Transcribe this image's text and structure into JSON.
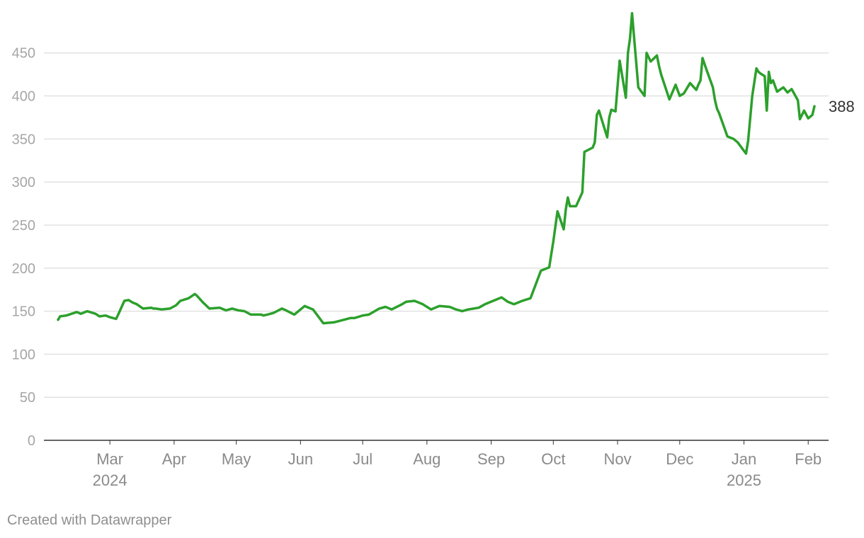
{
  "chart_data": {
    "type": "line",
    "title": "",
    "xlabel": "",
    "ylabel": "",
    "ylim": [
      0,
      495
    ],
    "yticks": [
      0,
      50,
      100,
      150,
      200,
      250,
      300,
      350,
      400,
      450
    ],
    "grid": true,
    "legend": "none",
    "line_color": "#2ca02c",
    "grid_color": "#e2e2e2",
    "xticks": [
      {
        "month": "Mar",
        "year": "2024",
        "date": "2024-03-01"
      },
      {
        "month": "Apr",
        "year": "",
        "date": "2024-04-01"
      },
      {
        "month": "May",
        "year": "",
        "date": "2024-05-01"
      },
      {
        "month": "Jun",
        "year": "",
        "date": "2024-06-01"
      },
      {
        "month": "Jul",
        "year": "",
        "date": "2024-07-01"
      },
      {
        "month": "Aug",
        "year": "",
        "date": "2024-08-01"
      },
      {
        "month": "Sep",
        "year": "",
        "date": "2024-09-01"
      },
      {
        "month": "Oct",
        "year": "",
        "date": "2024-10-01"
      },
      {
        "month": "Nov",
        "year": "",
        "date": "2024-11-01"
      },
      {
        "month": "Dec",
        "year": "",
        "date": "2024-12-01"
      },
      {
        "month": "Jan",
        "year": "2025",
        "date": "2025-01-01"
      },
      {
        "month": "Feb",
        "year": "",
        "date": "2025-02-01"
      }
    ],
    "end_label": "388",
    "series": [
      {
        "x": [
          "2024-02-05",
          "2024-02-06",
          "2024-02-09",
          "2024-02-14",
          "2024-02-16",
          "2024-02-19",
          "2024-02-23",
          "2024-02-25",
          "2024-02-28",
          "2024-03-01",
          "2024-03-04",
          "2024-03-05",
          "2024-03-08",
          "2024-03-10",
          "2024-03-12",
          "2024-03-14",
          "2024-03-17",
          "2024-03-21",
          "2024-03-22",
          "2024-03-23",
          "2024-03-26",
          "2024-03-30",
          "2024-04-02",
          "2024-04-04",
          "2024-04-08",
          "2024-04-11",
          "2024-04-12",
          "2024-04-15",
          "2024-04-18",
          "2024-04-23",
          "2024-04-26",
          "2024-04-29",
          "2024-05-02",
          "2024-05-05",
          "2024-05-08",
          "2024-05-13",
          "2024-05-14",
          "2024-05-16",
          "2024-05-19",
          "2024-05-23",
          "2024-05-25",
          "2024-05-29",
          "2024-06-03",
          "2024-06-05",
          "2024-06-07",
          "2024-06-12",
          "2024-06-17",
          "2024-06-22",
          "2024-06-25",
          "2024-06-27",
          "2024-07-01",
          "2024-07-04",
          "2024-07-09",
          "2024-07-12",
          "2024-07-15",
          "2024-07-20",
          "2024-07-22",
          "2024-07-26",
          "2024-07-30",
          "2024-08-03",
          "2024-08-07",
          "2024-08-12",
          "2024-08-15",
          "2024-08-18",
          "2024-08-21",
          "2024-08-26",
          "2024-08-29",
          "2024-09-03",
          "2024-09-06",
          "2024-09-09",
          "2024-09-12",
          "2024-09-16",
          "2024-09-20",
          "2024-09-25",
          "2024-09-29",
          "2024-10-01",
          "2024-10-03",
          "2024-10-06",
          "2024-10-07",
          "2024-10-08",
          "2024-10-09",
          "2024-10-12",
          "2024-10-15",
          "2024-10-16",
          "2024-10-20",
          "2024-10-21",
          "2024-10-22",
          "2024-10-23",
          "2024-10-27",
          "2024-10-28",
          "2024-10-29",
          "2024-10-31",
          "2024-11-02",
          "2024-11-05",
          "2024-11-06",
          "2024-11-07",
          "2024-11-08",
          "2024-11-11",
          "2024-11-14",
          "2024-11-15",
          "2024-11-17",
          "2024-11-20",
          "2024-11-21",
          "2024-11-22",
          "2024-11-26",
          "2024-11-29",
          "2024-12-01",
          "2024-12-03",
          "2024-12-06",
          "2024-12-09",
          "2024-12-10",
          "2024-12-11",
          "2024-12-12",
          "2024-12-14",
          "2024-12-17",
          "2024-12-18",
          "2024-12-19",
          "2024-12-20",
          "2024-12-24",
          "2024-12-27",
          "2024-12-29",
          "2025-01-02",
          "2025-01-03",
          "2025-01-05",
          "2025-01-07",
          "2025-01-08",
          "2025-01-09",
          "2025-01-11",
          "2025-01-12",
          "2025-01-13",
          "2025-01-14",
          "2025-01-15",
          "2025-01-17",
          "2025-01-20",
          "2025-01-22",
          "2025-01-24",
          "2025-01-27",
          "2025-01-28",
          "2025-01-30",
          "2025-02-01",
          "2025-02-03",
          "2025-02-04"
        ],
        "y": [
          140,
          144,
          145,
          149,
          147,
          150,
          147,
          144,
          145,
          143,
          141,
          146,
          162,
          163,
          160,
          158,
          153,
          154,
          153,
          153,
          152,
          153,
          157,
          162,
          165,
          170,
          168,
          160,
          153,
          154,
          151,
          153,
          151,
          150,
          146,
          146,
          145,
          146,
          148,
          153,
          151,
          146,
          156,
          154,
          152,
          136,
          137,
          140,
          142,
          142,
          145,
          146,
          153,
          155,
          152,
          158,
          161,
          162,
          158,
          152,
          156,
          155,
          152,
          150,
          152,
          154,
          158,
          163,
          166,
          161,
          158,
          162,
          165,
          197,
          201,
          231,
          266,
          245,
          268,
          282,
          272,
          272,
          288,
          335,
          340,
          346,
          378,
          383,
          352,
          375,
          384,
          382,
          441,
          398,
          450,
          467,
          496,
          410,
          400,
          450,
          440,
          447,
          435,
          425,
          396,
          413,
          400,
          403,
          415,
          407,
          413,
          418,
          444,
          430,
          410,
          395,
          385,
          380,
          353,
          350,
          346,
          333,
          348,
          400,
          432,
          428,
          426,
          423,
          383,
          428,
          415,
          418,
          405,
          410,
          404,
          408,
          395,
          373,
          383,
          374,
          378,
          388
        ]
      }
    ]
  },
  "footer": {
    "credit": "Created with Datawrapper"
  }
}
